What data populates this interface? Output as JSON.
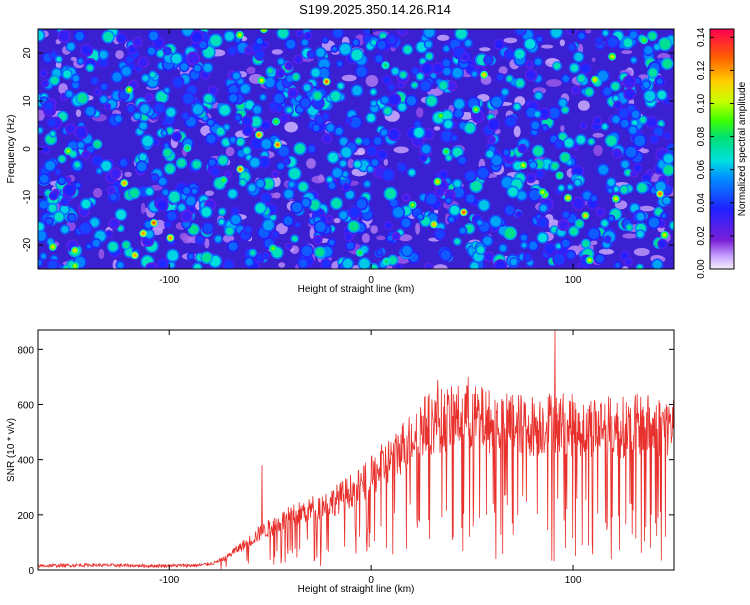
{
  "page": {
    "title": "S199.2025.350.14.26.R14"
  },
  "chart_data": [
    {
      "type": "heatmap",
      "title": "S199.2025.350.14.26.R14",
      "xlabel": "Height of straight line (km)",
      "ylabel": "Frequency (Hz)",
      "xlim": [
        -165,
        150
      ],
      "ylim": [
        -25,
        25
      ],
      "x_ticks": [
        -100,
        0,
        100
      ],
      "y_ticks": [
        -20,
        -10,
        0,
        10,
        20
      ],
      "colorbar": {
        "label": "Normalized spectral amplitude",
        "range": [
          0,
          0.145
        ],
        "ticks": [
          "0.00",
          "0.02",
          "0.04",
          "0.06",
          "0.08",
          "0.10",
          "0.12",
          "0.14"
        ]
      },
      "description_values": {
        "background_level": 0.03,
        "peak_level": 0.13
      }
    },
    {
      "type": "line",
      "xlabel": "Height of straight line (km)",
      "ylabel": "SNR (10 * v/v)",
      "xlim": [
        -165,
        150
      ],
      "ylim": [
        0,
        870
      ],
      "x_ticks": [
        -100,
        0,
        100
      ],
      "y_ticks": [
        0,
        200,
        400,
        600,
        800
      ],
      "color": "#e8302c",
      "series": [
        {
          "name": "SNR",
          "x": [
            -165,
            -140,
            -110,
            -85,
            -78,
            -72,
            -68,
            -63,
            -60,
            -55,
            -50,
            -45,
            -40,
            -35,
            -30,
            -25,
            -20,
            -15,
            -10,
            -5,
            0,
            5,
            10,
            15,
            20,
            25,
            30,
            35,
            40,
            45,
            50,
            55,
            60,
            65,
            70,
            75,
            80,
            85,
            90,
            95,
            100,
            105,
            110,
            115,
            120,
            125,
            130,
            135,
            140,
            145,
            150
          ],
          "values": [
            15,
            18,
            15,
            17,
            25,
            45,
            70,
            95,
            110,
            140,
            160,
            180,
            200,
            215,
            230,
            240,
            255,
            275,
            300,
            320,
            350,
            390,
            420,
            460,
            510,
            540,
            555,
            565,
            570,
            580,
            575,
            570,
            560,
            555,
            560,
            550,
            545,
            550,
            560,
            555,
            545,
            540,
            545,
            550,
            535,
            540,
            545,
            550,
            540,
            545,
            545
          ],
          "spikes": [
            {
              "x": -54,
              "value": 380
            },
            {
              "x": 91,
              "value": 870
            },
            {
              "x": 33,
              "value": 690
            },
            {
              "x": 48,
              "value": 700
            }
          ]
        }
      ]
    }
  ]
}
